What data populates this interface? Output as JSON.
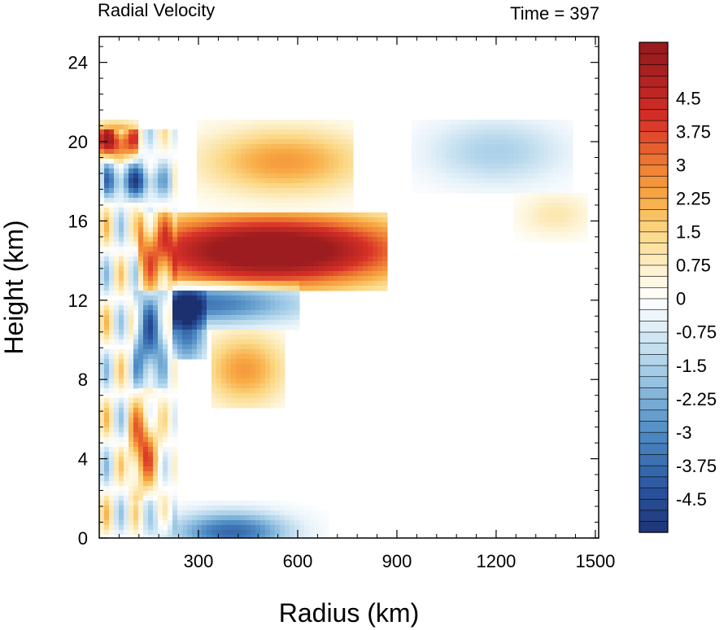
{
  "chart_data": {
    "type": "heatmap",
    "title": "Radial Velocity",
    "time_label": "Time = 397",
    "xlabel": "Radius (km)",
    "ylabel": "Height (km)",
    "xlim": [
      0,
      1510
    ],
    "ylim": [
      0,
      25.3
    ],
    "x_ticks": [
      300,
      600,
      900,
      1200,
      1500
    ],
    "x_tick_labels": [
      "300",
      "600",
      "900",
      "1200",
      "1500"
    ],
    "y_ticks": [
      0,
      4,
      8,
      12,
      16,
      20,
      24
    ],
    "y_tick_labels": [
      "0",
      "4",
      "8",
      "12",
      "16",
      "20",
      "24"
    ],
    "colorbar": {
      "levels_start": -5.25,
      "levels_step": 0.25,
      "n_colors": 44,
      "tick_values": [
        4.5,
        3.75,
        3,
        2.25,
        1.5,
        0.75,
        0,
        -0.75,
        -1.5,
        -2.25,
        -3,
        -3.75,
        -4.5
      ],
      "tick_labels": [
        "4.5",
        "3.75",
        "3",
        "2.25",
        "1.5",
        "0.75",
        "0",
        "-0.75",
        "-1.5",
        "-2.25",
        "-3",
        "-3.75",
        "-4.5"
      ],
      "color_stops": [
        {
          "v": -5.5,
          "color": "#1b2c6b"
        },
        {
          "v": -4.25,
          "color": "#2a55a0"
        },
        {
          "v": -3.0,
          "color": "#4f8cc4"
        },
        {
          "v": -1.75,
          "color": "#9cc8e4"
        },
        {
          "v": -0.5,
          "color": "#e8f3fa"
        },
        {
          "v": 0.0,
          "color": "#ffffff"
        },
        {
          "v": 0.5,
          "color": "#fdf6dc"
        },
        {
          "v": 1.5,
          "color": "#fbd783"
        },
        {
          "v": 2.25,
          "color": "#f8ab45"
        },
        {
          "v": 3.0,
          "color": "#ef7d33"
        },
        {
          "v": 4.0,
          "color": "#d73027"
        },
        {
          "v": 5.5,
          "color": "#991b1e"
        }
      ]
    },
    "field_features": [
      {
        "desc": "main outflow jet",
        "x": 520,
        "y": 14.5,
        "sx": 300,
        "sy": 1.3,
        "amp": 6.5,
        "x_range": [
          120,
          870
        ],
        "y_range": [
          12.4,
          16.4
        ]
      },
      {
        "desc": "inflow below jet",
        "x": 300,
        "y": 11.8,
        "sx": 220,
        "sy": 0.7,
        "amp": -3.5,
        "x_range": [
          220,
          600
        ],
        "y_range": [
          10.5,
          13
        ]
      },
      {
        "desc": "inflow below jet core",
        "x": 265,
        "y": 10.8,
        "sx": 40,
        "sy": 1.4,
        "amp": -4.0,
        "x_range": [
          220,
          320
        ],
        "y_range": [
          9,
          12.5
        ]
      },
      {
        "desc": "inner inflow column",
        "x": 150,
        "y": 10,
        "sx": 35,
        "sy": 1.8,
        "amp": -3.5,
        "x_range": [
          110,
          200
        ],
        "y_range": [
          7.5,
          12.5
        ]
      },
      {
        "desc": "outflow above upper band",
        "x": 560,
        "y": 19.0,
        "sx": 180,
        "sy": 1.2,
        "amp": 2.5,
        "x_range": [
          300,
          760
        ],
        "y_range": [
          16.5,
          21
        ]
      },
      {
        "desc": "inner upper outflow",
        "x": 50,
        "y": 20.0,
        "sx": 60,
        "sy": 0.6,
        "amp": 4.5,
        "x_range": [
          0,
          120
        ],
        "y_range": [
          19,
          21
        ]
      },
      {
        "desc": "inner upper inflow",
        "x": 100,
        "y": 18.0,
        "sx": 70,
        "sy": 0.6,
        "amp": -3.5,
        "x_range": [
          20,
          220
        ],
        "y_range": [
          17,
          19.5
        ]
      },
      {
        "desc": "mid-level outflow",
        "x": 440,
        "y": 8.5,
        "sx": 90,
        "sy": 1.3,
        "amp": 2.5,
        "x_range": [
          340,
          560
        ],
        "y_range": [
          6.5,
          10.5
        ]
      },
      {
        "desc": "outer upper inflow",
        "x": 1200,
        "y": 19.5,
        "sx": 150,
        "sy": 1.2,
        "amp": -1.5,
        "x_range": [
          950,
          1430
        ],
        "y_range": [
          17.5,
          21
        ]
      },
      {
        "desc": "outer weak outflow",
        "x": 1380,
        "y": 16.3,
        "sx": 80,
        "sy": 0.8,
        "amp": 1.0,
        "x_range": [
          1250,
          1470
        ],
        "y_range": [
          15,
          17.5
        ]
      },
      {
        "desc": "boundary layer inflow",
        "x": 400,
        "y": 0.3,
        "sx": 120,
        "sy": 0.7,
        "amp": -3.8,
        "x_range": [
          120,
          700
        ],
        "y_range": [
          0,
          2
        ]
      },
      {
        "desc": "low-level inner outflow",
        "x": 130,
        "y": 4.5,
        "sx": 30,
        "sy": 1.4,
        "amp": 3.5,
        "x_range": [
          90,
          210
        ],
        "y_range": [
          2,
          8
        ]
      }
    ]
  }
}
